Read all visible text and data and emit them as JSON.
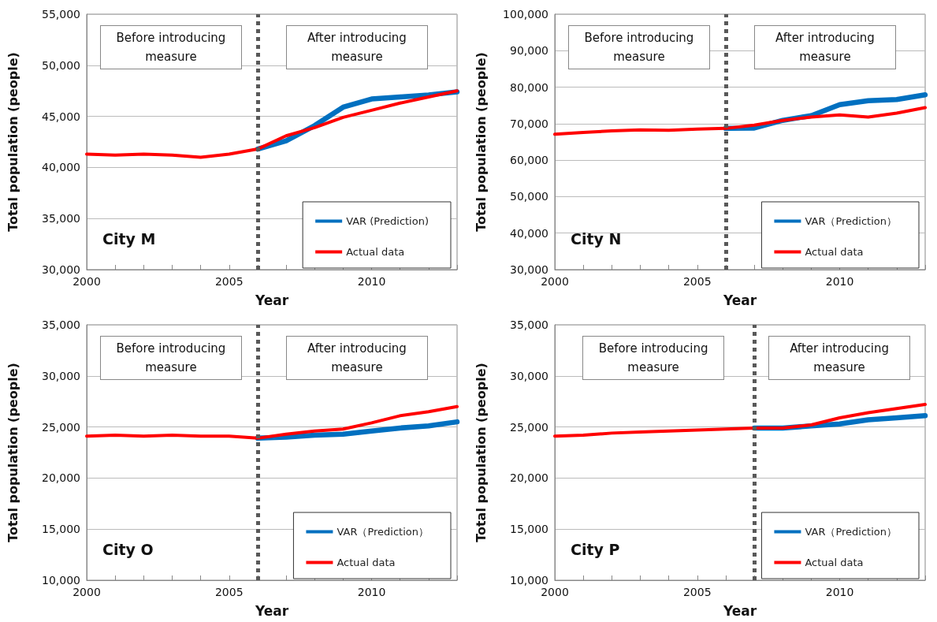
{
  "chart_data": [
    {
      "type": "line",
      "title": null,
      "xlabel": "Year",
      "ylabel": "Total population (people)",
      "x": [
        2000,
        2001,
        2002,
        2003,
        2004,
        2005,
        2006,
        2007,
        2008,
        2009,
        2010,
        2011,
        2012,
        2013
      ],
      "series": [
        {
          "name": "VAR (Prediction)",
          "color": "#0070c0",
          "values": [
            null,
            null,
            null,
            null,
            null,
            null,
            41800,
            42600,
            44100,
            45900,
            46700,
            46900,
            47100,
            47400
          ]
        },
        {
          "name": "Actual data",
          "color": "#ff0000",
          "values": [
            41300,
            41200,
            41300,
            41200,
            41000,
            41300,
            41800,
            43100,
            43900,
            44900,
            45600,
            46300,
            46900,
            47500
          ]
        }
      ],
      "xlim": [
        2000,
        2013
      ],
      "xticks": [
        2000,
        {
          "value": 2001,
          "label": null
        },
        {
          "value": 2002,
          "label": null
        },
        {
          "value": 2003,
          "label": null
        },
        {
          "value": 2004,
          "label": null
        },
        2005,
        {
          "value": 2006,
          "label": null
        },
        {
          "value": 2007,
          "label": null
        },
        {
          "value": 2008,
          "label": null
        },
        {
          "value": 2009,
          "label": null
        },
        2010,
        {
          "value": 2011,
          "label": null
        },
        {
          "value": 2012,
          "label": null
        },
        {
          "value": 2013,
          "label": null
        }
      ],
      "ylim": [
        30000,
        55000
      ],
      "yticks": [
        {
          "value": 30000,
          "label": "30,000"
        },
        {
          "value": 35000,
          "label": "35,000"
        },
        {
          "value": 40000,
          "label": "40,000"
        },
        {
          "value": 45000,
          "label": "45,000"
        },
        {
          "value": 50000,
          "label": "50,000"
        },
        {
          "value": 55000,
          "label": "55,000"
        }
      ],
      "ref_lines": [
        {
          "axis": "x",
          "value": 2006,
          "color": "#595959",
          "line_style": "dotted"
        }
      ],
      "annotations": [
        "Before introducing measure",
        "After introducing measure",
        "City M"
      ],
      "grid": "y",
      "legend": "bottom right",
      "marker": "none",
      "line_style": "solid"
    },
    {
      "type": "line",
      "title": null,
      "xlabel": "Year",
      "ylabel": "Total population (people)",
      "x": [
        2000,
        2001,
        2002,
        2003,
        2004,
        2005,
        2006,
        2007,
        2008,
        2009,
        2010,
        2011,
        2012,
        2013
      ],
      "series": [
        {
          "name": "VAR（Prediction）",
          "color": "#0070c0",
          "values": [
            null,
            null,
            null,
            null,
            null,
            null,
            68700,
            68800,
            70900,
            72200,
            75200,
            76300,
            76600,
            77900
          ]
        },
        {
          "name": "Actual data",
          "color": "#ff0000",
          "values": [
            67100,
            67600,
            68000,
            68300,
            68200,
            68500,
            68700,
            69600,
            70900,
            71800,
            72400,
            71800,
            72900,
            74400
          ]
        }
      ],
      "xlim": [
        2000,
        2013
      ],
      "xticks": [
        2000,
        {
          "value": 2001,
          "label": null
        },
        {
          "value": 2002,
          "label": null
        },
        {
          "value": 2003,
          "label": null
        },
        {
          "value": 2004,
          "label": null
        },
        2005,
        {
          "value": 2006,
          "label": null
        },
        {
          "value": 2007,
          "label": null
        },
        {
          "value": 2008,
          "label": null
        },
        {
          "value": 2009,
          "label": null
        },
        2010,
        {
          "value": 2011,
          "label": null
        },
        {
          "value": 2012,
          "label": null
        },
        {
          "value": 2013,
          "label": null
        }
      ],
      "ylim": [
        30000,
        100000
      ],
      "yticks": [
        {
          "value": 30000,
          "label": "30,000"
        },
        {
          "value": 40000,
          "label": "40,000"
        },
        {
          "value": 50000,
          "label": "50,000"
        },
        {
          "value": 60000,
          "label": "60,000"
        },
        {
          "value": 70000,
          "label": "70,000"
        },
        {
          "value": 80000,
          "label": "80,000"
        },
        {
          "value": 90000,
          "label": "90,000"
        },
        {
          "value": 100000,
          "label": "100,000"
        }
      ],
      "ref_lines": [
        {
          "axis": "x",
          "value": 2006,
          "color": "#595959",
          "line_style": "dotted"
        }
      ],
      "annotations": [
        "Before introducing measure",
        "After introducing measure",
        "City N"
      ],
      "grid": "y",
      "legend": "bottom right",
      "marker": "none",
      "line_style": "solid"
    },
    {
      "type": "line",
      "title": null,
      "xlabel": "Year",
      "ylabel": "Total population (people)",
      "x": [
        2000,
        2001,
        2002,
        2003,
        2004,
        2005,
        2006,
        2007,
        2008,
        2009,
        2010,
        2011,
        2012,
        2013
      ],
      "series": [
        {
          "name": "VAR（Prediction）",
          "color": "#0070c0",
          "values": [
            null,
            null,
            null,
            null,
            null,
            null,
            23900,
            24000,
            24200,
            24300,
            24600,
            24900,
            25100,
            25500
          ]
        },
        {
          "name": "Actual data",
          "color": "#ff0000",
          "values": [
            24100,
            24200,
            24100,
            24200,
            24100,
            24100,
            23900,
            24300,
            24600,
            24800,
            25400,
            26100,
            26500,
            27000
          ]
        }
      ],
      "xlim": [
        2000,
        2013
      ],
      "xticks": [
        2000,
        {
          "value": 2001,
          "label": null
        },
        {
          "value": 2002,
          "label": null
        },
        {
          "value": 2003,
          "label": null
        },
        {
          "value": 2004,
          "label": null
        },
        2005,
        {
          "value": 2006,
          "label": null
        },
        {
          "value": 2007,
          "label": null
        },
        {
          "value": 2008,
          "label": null
        },
        {
          "value": 2009,
          "label": null
        },
        2010,
        {
          "value": 2011,
          "label": null
        },
        {
          "value": 2012,
          "label": null
        },
        {
          "value": 2013,
          "label": null
        }
      ],
      "ylim": [
        10000,
        35000
      ],
      "yticks": [
        {
          "value": 10000,
          "label": "10,000"
        },
        {
          "value": 15000,
          "label": "15,000"
        },
        {
          "value": 20000,
          "label": "20,000"
        },
        {
          "value": 25000,
          "label": "25,000"
        },
        {
          "value": 30000,
          "label": "30,000"
        },
        {
          "value": 35000,
          "label": "35,000"
        }
      ],
      "ref_lines": [
        {
          "axis": "x",
          "value": 2006,
          "color": "#595959",
          "line_style": "dotted"
        }
      ],
      "annotations": [
        "Before introducing measure",
        "After introducing measure",
        "City O"
      ],
      "grid": "y",
      "legend": "bottom right",
      "marker": "none",
      "line_style": "solid"
    },
    {
      "type": "line",
      "title": null,
      "xlabel": "Year",
      "ylabel": "Total population (people)",
      "x": [
        2000,
        2001,
        2002,
        2003,
        2004,
        2005,
        2006,
        2007,
        2008,
        2009,
        2010,
        2011,
        2012,
        2013
      ],
      "series": [
        {
          "name": "VAR（Prediction）",
          "color": "#0070c0",
          "values": [
            null,
            null,
            null,
            null,
            null,
            null,
            null,
            24900,
            24900,
            25100,
            25300,
            25700,
            25900,
            26100
          ]
        },
        {
          "name": "Actual data",
          "color": "#ff0000",
          "values": [
            24100,
            24200,
            24400,
            24500,
            24600,
            24700,
            24800,
            24900,
            24900,
            25200,
            25900,
            26400,
            26800,
            27200
          ]
        }
      ],
      "xlim": [
        2000,
        2013
      ],
      "xticks": [
        2000,
        {
          "value": 2001,
          "label": null
        },
        {
          "value": 2002,
          "label": null
        },
        {
          "value": 2003,
          "label": null
        },
        {
          "value": 2004,
          "label": null
        },
        2005,
        {
          "value": 2006,
          "label": null
        },
        {
          "value": 2007,
          "label": null
        },
        {
          "value": 2008,
          "label": null
        },
        {
          "value": 2009,
          "label": null
        },
        2010,
        {
          "value": 2011,
          "label": null
        },
        {
          "value": 2012,
          "label": null
        },
        {
          "value": 2013,
          "label": null
        }
      ],
      "ylim": [
        10000,
        35000
      ],
      "yticks": [
        {
          "value": 10000,
          "label": "10,000"
        },
        {
          "value": 15000,
          "label": "15,000"
        },
        {
          "value": 20000,
          "label": "20,000"
        },
        {
          "value": 25000,
          "label": "25,000"
        },
        {
          "value": 30000,
          "label": "30,000"
        },
        {
          "value": 35000,
          "label": "35,000"
        }
      ],
      "ref_lines": [
        {
          "axis": "x",
          "value": 2007,
          "color": "#595959",
          "line_style": "dotted"
        }
      ],
      "annotations": [
        "Before introducing measure",
        "After introducing measure",
        "City P"
      ],
      "grid": "y",
      "legend": "bottom right",
      "marker": "none",
      "line_style": "solid"
    }
  ]
}
